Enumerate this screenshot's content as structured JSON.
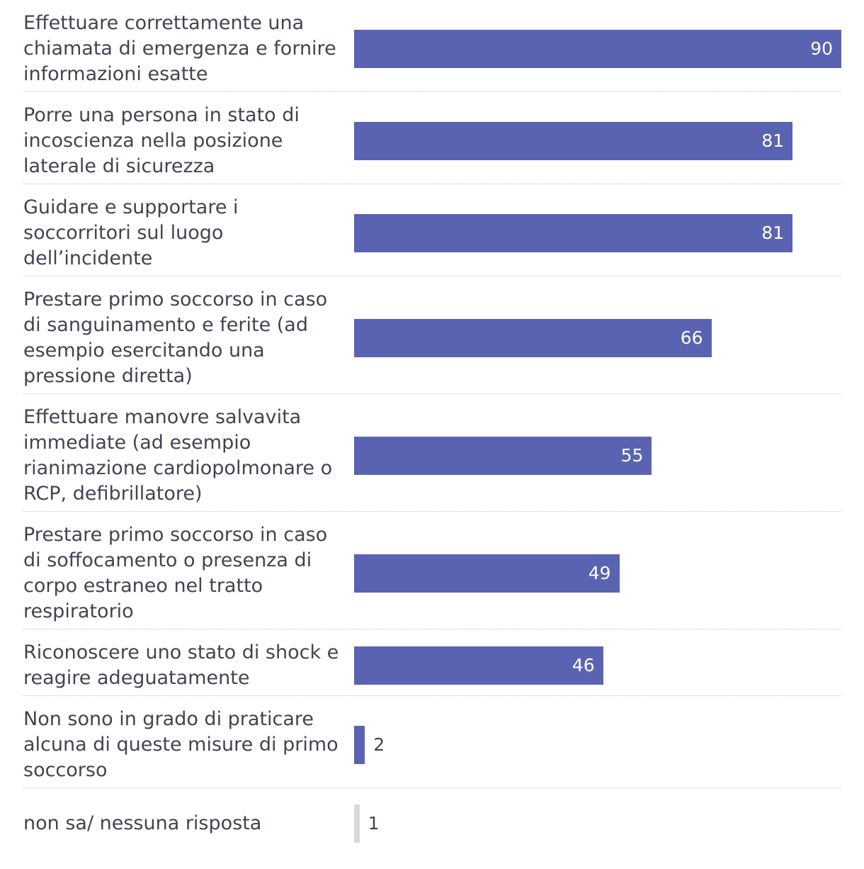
{
  "chart_data": {
    "type": "bar",
    "orientation": "horizontal",
    "categories": [
      "Effettuare correttamente una chiamata di emergenza e fornire informazioni esatte",
      "Porre una persona in stato di incoscienza nella posizione laterale di sicurezza",
      "Guidare e supportare i soccorritori sul luogo dell’incidente",
      "Prestare primo soccorso in caso di sanguinamento e ferite (ad esempio esercitando una pressione diretta)",
      "Effettuare manovre salvavita immediate (ad esempio rianimazione cardiopolmonare o RCP, defibrillatore)",
      "Prestare primo soccorso in caso di soffocamento o presenza di corpo estraneo nel tratto respiratorio",
      "Riconoscere uno stato di shock e reagire adeguatamente",
      "Non sono in grado di praticare alcuna di queste misure di primo soccorso",
      "non sa/ nessuna risposta"
    ],
    "values": [
      90,
      81,
      81,
      66,
      55,
      49,
      46,
      2,
      1
    ],
    "value_labels": [
      "90",
      "81",
      "81",
      "66",
      "55",
      "49",
      "46",
      "2",
      "1"
    ],
    "bar_colors": [
      "#5a63b2",
      "#5a63b2",
      "#5a63b2",
      "#5a63b2",
      "#5a63b2",
      "#5a63b2",
      "#5a63b2",
      "#5a63b2",
      "#d9d9d9"
    ],
    "xlim": [
      0,
      90
    ],
    "title": "",
    "xlabel": "",
    "ylabel": "",
    "grid": false,
    "legend": "none"
  }
}
